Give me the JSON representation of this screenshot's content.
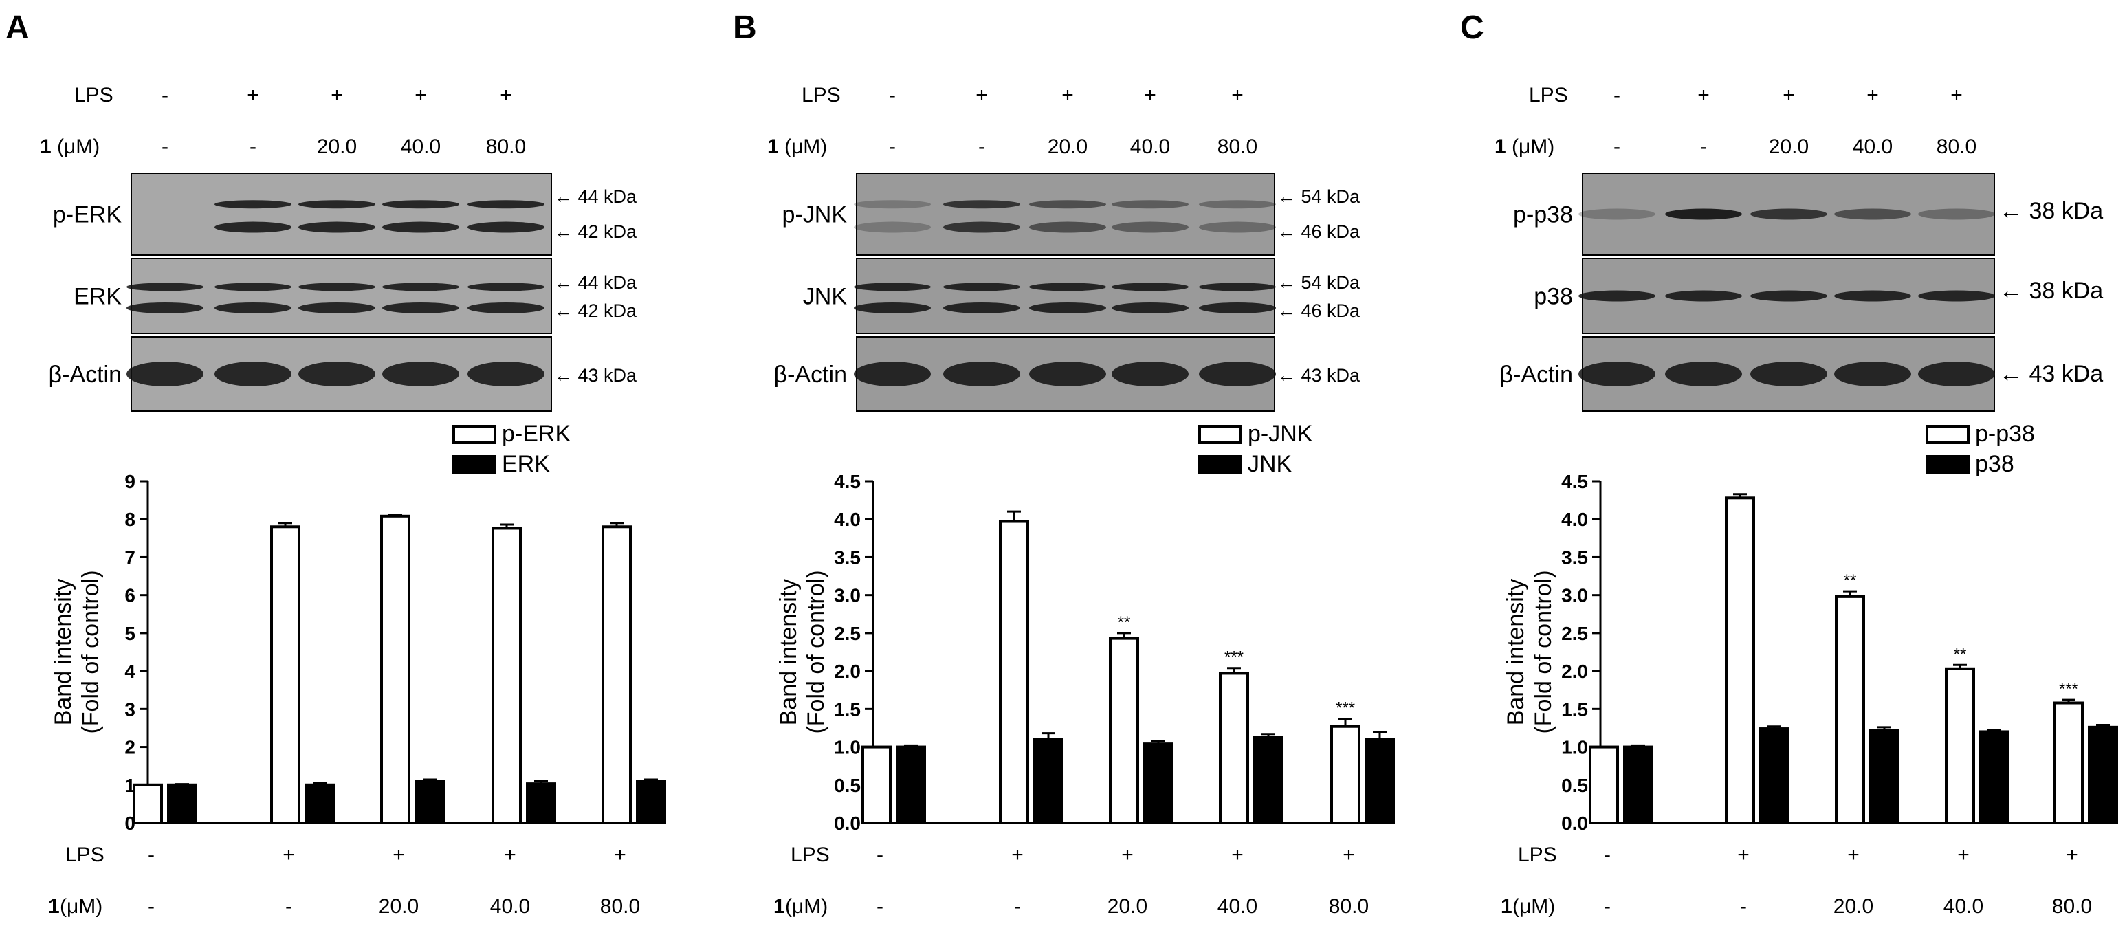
{
  "panels": [
    {
      "letter": "A",
      "lps_label": "LPS",
      "dose_label_bold": "1",
      "dose_label_unit": " (μM)",
      "lps_values": [
        "-",
        "+",
        "+",
        "+",
        "+"
      ],
      "dose_values": [
        "-",
        "-",
        "20.0",
        "40.0",
        "80.0"
      ],
      "blots": [
        {
          "label": "p-ERK",
          "markers": [
            "← 44 kDa",
            "← 42 kDa"
          ]
        },
        {
          "label": "ERK",
          "markers": [
            "← 44 kDa",
            "← 42 kDa"
          ]
        },
        {
          "label": "β-Actin",
          "markers": [
            "← 43 kDa"
          ]
        }
      ]
    },
    {
      "letter": "B",
      "lps_label": "LPS",
      "dose_label_bold": "1",
      "dose_label_unit": " (μM)",
      "lps_values": [
        "-",
        "+",
        "+",
        "+",
        "+"
      ],
      "dose_values": [
        "-",
        "-",
        "20.0",
        "40.0",
        "80.0"
      ],
      "blots": [
        {
          "label": "p-JNK",
          "markers": [
            "← 54 kDa",
            "← 46 kDa"
          ]
        },
        {
          "label": "JNK",
          "markers": [
            "← 54 kDa",
            "← 46 kDa"
          ]
        },
        {
          "label": "β-Actin",
          "markers": [
            "← 43 kDa"
          ]
        }
      ]
    },
    {
      "letter": "C",
      "lps_label": "LPS",
      "dose_label_bold": "1",
      "dose_label_unit": " (μM)",
      "lps_values": [
        "-",
        "+",
        "+",
        "+",
        "+"
      ],
      "dose_values": [
        "-",
        "-",
        "20.0",
        "40.0",
        "80.0"
      ],
      "blots": [
        {
          "label": "p-p38",
          "markers": [
            "← 38 kDa"
          ]
        },
        {
          "label": "p38",
          "markers": [
            "← 38 kDa"
          ]
        },
        {
          "label": "β-Actin",
          "markers": [
            "← 43 kDa"
          ]
        }
      ]
    }
  ],
  "chart_data": [
    {
      "type": "bar",
      "categories": [
        "LPS -, 1 -",
        "LPS +, 1 -",
        "LPS +, 1 20.0",
        "LPS +, 1 40.0",
        "LPS +, 1 80.0"
      ],
      "x_rows": [
        {
          "label": "LPS",
          "values": [
            "-",
            "+",
            "+",
            "+",
            "+"
          ]
        },
        {
          "label": "1 (μM)",
          "values": [
            "-",
            "-",
            "20.0",
            "40.0",
            "80.0"
          ]
        }
      ],
      "ylabel": [
        "Band intensity",
        "(Fold of control)"
      ],
      "ylim": [
        0,
        9
      ],
      "yticks": [
        0,
        1,
        2,
        3,
        4,
        5,
        6,
        7,
        8,
        9
      ],
      "tick_labels": [
        "0",
        "1",
        "2",
        "3",
        "4",
        "5",
        "6",
        "7",
        "8",
        "9"
      ],
      "legend_position": "top-right",
      "series": [
        {
          "name": "p-ERK",
          "fill": "#ffffff",
          "values": [
            1.0,
            7.8,
            8.08,
            7.76,
            7.8
          ],
          "errors": [
            0,
            0.1,
            0.03,
            0.1,
            0.1
          ],
          "significance": [
            "",
            "",
            "",
            "",
            ""
          ]
        },
        {
          "name": "ERK",
          "fill": "#000000",
          "values": [
            1.0,
            1.0,
            1.1,
            1.03,
            1.1
          ],
          "errors": [
            0.02,
            0.05,
            0.04,
            0.07,
            0.04
          ],
          "significance": [
            "",
            "",
            "",
            "",
            ""
          ]
        }
      ]
    },
    {
      "type": "bar",
      "categories": [
        "LPS -, 1 -",
        "LPS +, 1 -",
        "LPS +, 1 20.0",
        "LPS +, 1 40.0",
        "LPS +, 1 80.0"
      ],
      "x_rows": [
        {
          "label": "LPS",
          "values": [
            "-",
            "+",
            "+",
            "+",
            "+"
          ]
        },
        {
          "label": "1 (μM)",
          "values": [
            "-",
            "-",
            "20.0",
            "40.0",
            "80.0"
          ]
        }
      ],
      "ylabel": [
        "Band intensity",
        "(Fold of control)"
      ],
      "ylim": [
        0,
        4.5
      ],
      "yticks": [
        0,
        0.5,
        1,
        1.5,
        2,
        2.5,
        3,
        3.5,
        4,
        4.5
      ],
      "tick_labels": [
        "0.0",
        "0.5",
        "1.0",
        "1.5",
        "2.0",
        "2.5",
        "3.0",
        "3.5",
        "4.0",
        "4.5"
      ],
      "legend_position": "top-right",
      "series": [
        {
          "name": "p-JNK",
          "fill": "#ffffff",
          "values": [
            1.0,
            3.97,
            2.43,
            1.97,
            1.27
          ],
          "errors": [
            0,
            0.13,
            0.07,
            0.07,
            0.1
          ],
          "significance": [
            "",
            "",
            "**",
            "***",
            "***"
          ]
        },
        {
          "name": "JNK",
          "fill": "#000000",
          "values": [
            1.0,
            1.1,
            1.04,
            1.13,
            1.1
          ],
          "errors": [
            0.02,
            0.08,
            0.04,
            0.04,
            0.1
          ],
          "significance": [
            "",
            "",
            "",
            "",
            ""
          ]
        }
      ]
    },
    {
      "type": "bar",
      "categories": [
        "LPS -, 1 -",
        "LPS +, 1 -",
        "LPS +, 1 20.0",
        "LPS +, 1 40.0",
        "LPS +, 1 80.0"
      ],
      "x_rows": [
        {
          "label": "LPS",
          "values": [
            "-",
            "+",
            "+",
            "+",
            "+"
          ]
        },
        {
          "label": "1 (μM)",
          "values": [
            "-",
            "-",
            "20.0",
            "40.0",
            "80.0"
          ]
        }
      ],
      "ylabel": [
        "Band intensity",
        "(Fold of control)"
      ],
      "ylim": [
        0,
        4.5
      ],
      "yticks": [
        0,
        0.5,
        1,
        1.5,
        2,
        2.5,
        3,
        3.5,
        4,
        4.5
      ],
      "tick_labels": [
        "0.0",
        "0.5",
        "1.0",
        "1.5",
        "2.0",
        "2.5",
        "3.0",
        "3.5",
        "4.0",
        "4.5"
      ],
      "legend_position": "top-right",
      "series": [
        {
          "name": "p-p38",
          "fill": "#ffffff",
          "values": [
            1.0,
            4.28,
            2.98,
            2.03,
            1.58
          ],
          "errors": [
            0,
            0.05,
            0.07,
            0.05,
            0.04
          ],
          "significance": [
            "",
            "",
            "**",
            "**",
            "***"
          ]
        },
        {
          "name": "p38",
          "fill": "#000000",
          "values": [
            1.0,
            1.24,
            1.22,
            1.2,
            1.26
          ],
          "errors": [
            0.02,
            0.03,
            0.04,
            0.02,
            0.03
          ],
          "significance": [
            "",
            "",
            "",
            "",
            ""
          ]
        }
      ]
    }
  ]
}
